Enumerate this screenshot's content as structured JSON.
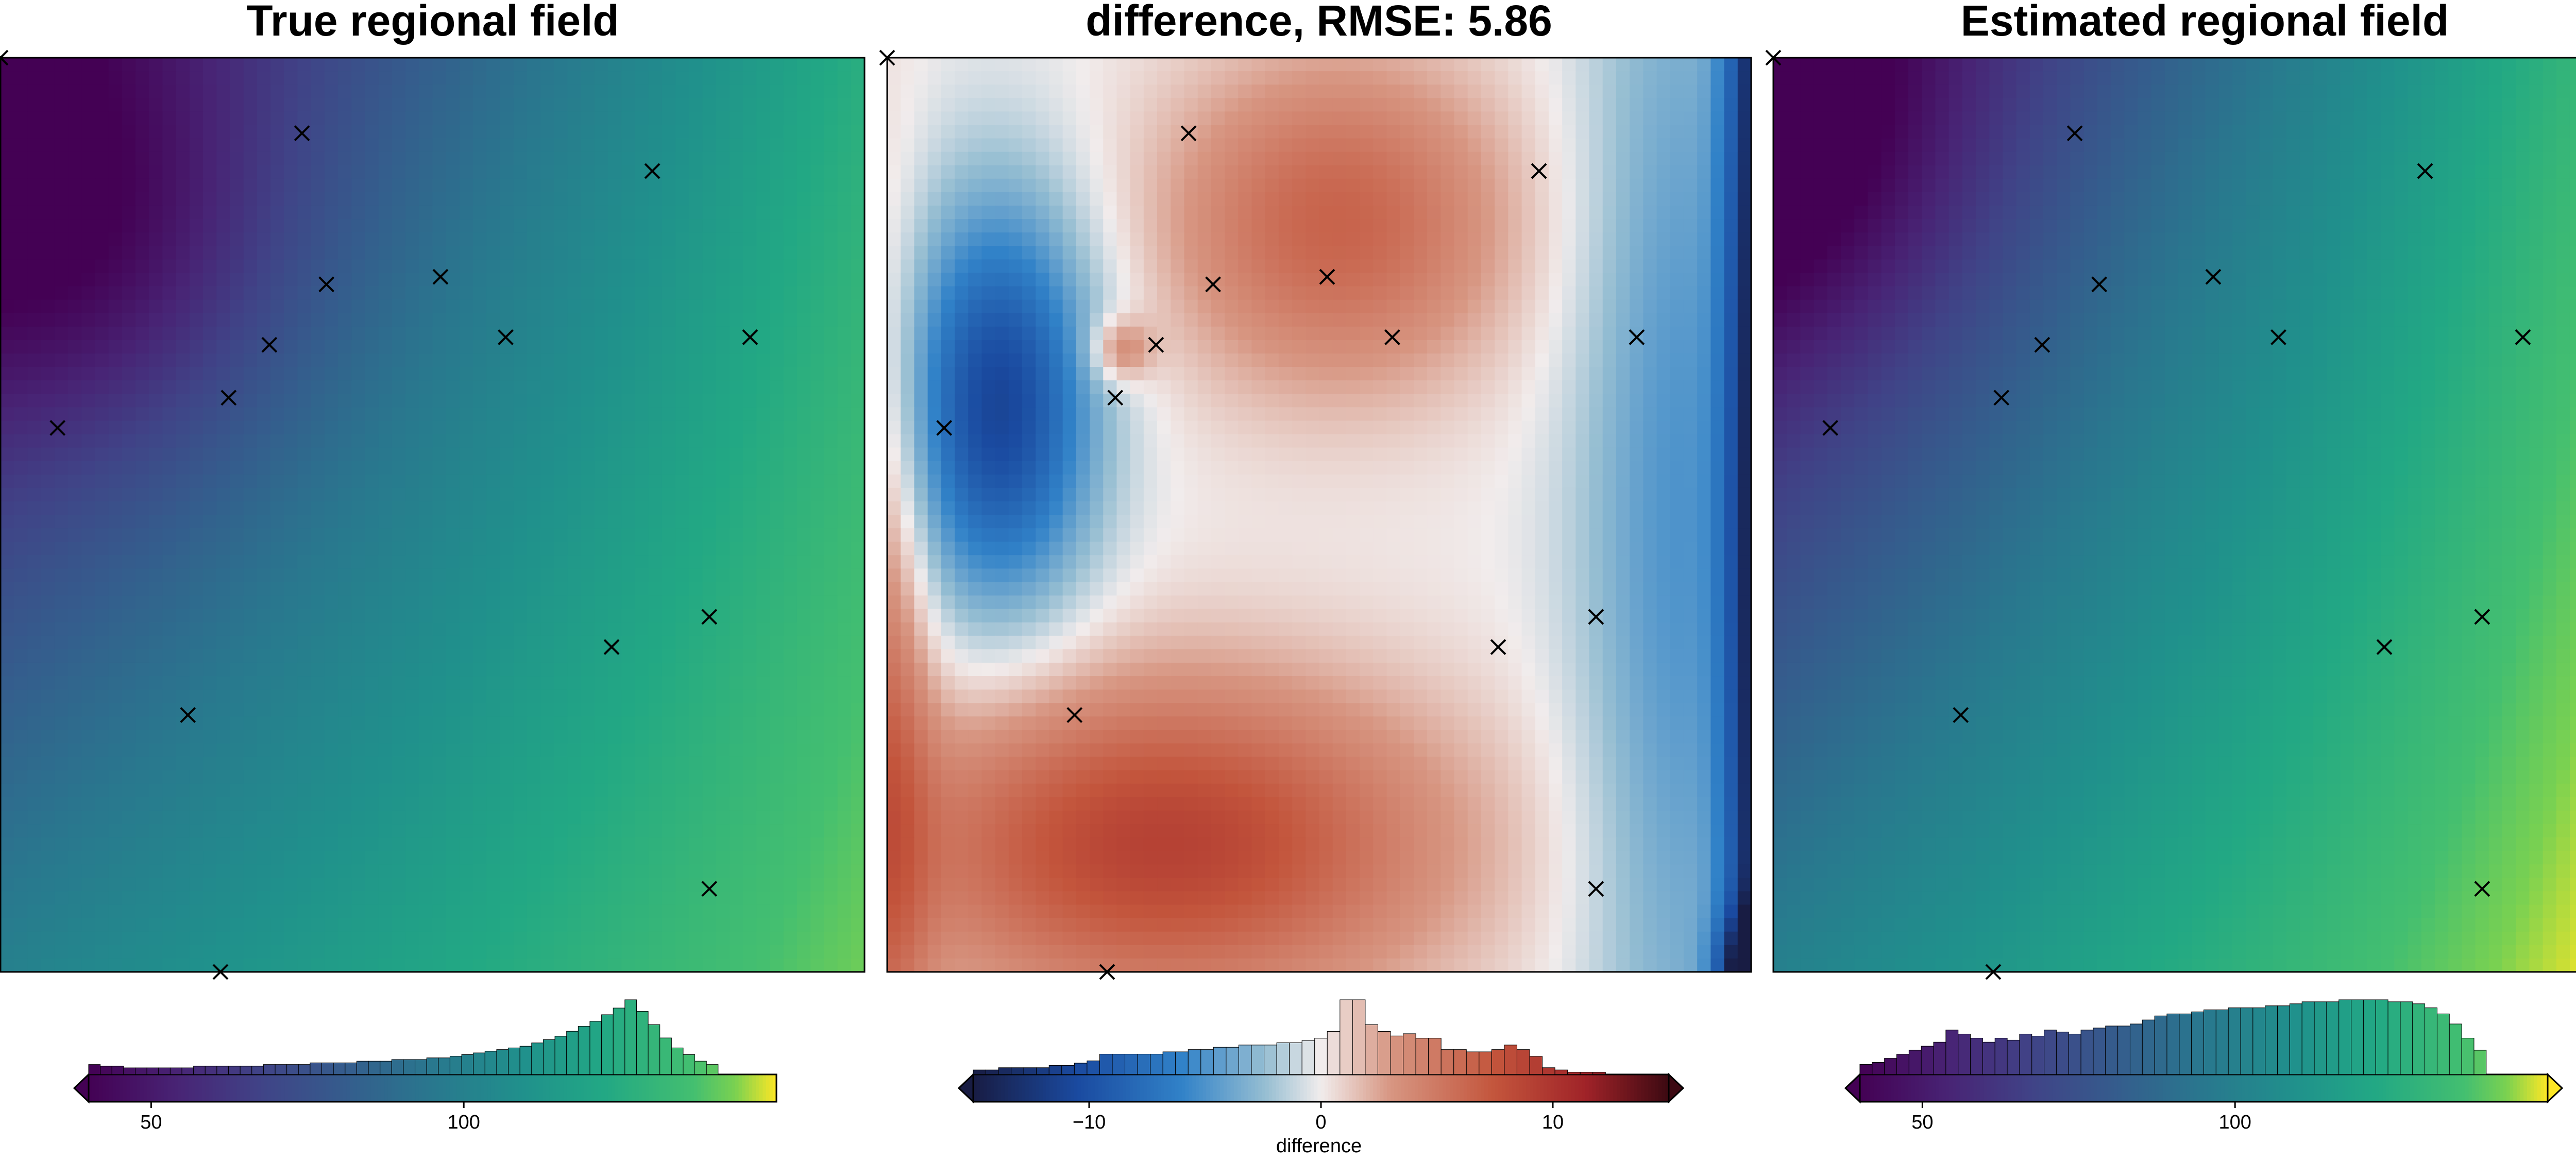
{
  "chart_data": [
    {
      "type": "heatmap",
      "title": "True regional field",
      "colormap": "viridis",
      "field": {
        "z_nw": 40,
        "z_ne": 126,
        "z_sw": 100,
        "z_se": 142,
        "min_at": [
          0.1,
          0.2
        ]
      },
      "colorbar": {
        "ticks": [
          50,
          100
        ],
        "range": [
          40,
          150
        ],
        "extend": "min",
        "label": "",
        "histogram": [
          6,
          5,
          5,
          4,
          4,
          4,
          4,
          4,
          4,
          5,
          5,
          5,
          5,
          5,
          5,
          6,
          6,
          6,
          6,
          7,
          7,
          7,
          7,
          8,
          8,
          8,
          9,
          9,
          9,
          10,
          10,
          11,
          12,
          13,
          14,
          15,
          16,
          17,
          19,
          21,
          23,
          26,
          29,
          32,
          36,
          40,
          45,
          38,
          30,
          22,
          16,
          12,
          8,
          6
        ]
      },
      "points": [
        [
          -0.06,
          -0.01
        ],
        [
          0.31,
          0.09
        ],
        [
          0.74,
          0.14
        ],
        [
          0.34,
          0.29
        ],
        [
          0.48,
          0.28
        ],
        [
          0.27,
          0.37
        ],
        [
          0.56,
          0.36
        ],
        [
          0.86,
          0.36
        ],
        [
          0.22,
          0.44
        ],
        [
          0.01,
          0.48
        ],
        [
          0.81,
          0.73
        ],
        [
          0.69,
          0.77
        ],
        [
          0.17,
          0.86
        ],
        [
          0.81,
          1.09
        ],
        [
          0.21,
          1.2
        ]
      ]
    },
    {
      "type": "heatmap",
      "title": "difference, RMSE: 5.86",
      "colormap": "balance",
      "field": {
        "description_values": "diverging difference field, range -15 to 15"
      },
      "colorbar": {
        "ticks": [
          -10,
          0,
          10
        ],
        "range": [
          -15,
          15
        ],
        "extend": "both",
        "label": "difference",
        "histogram": [
          2,
          2,
          3,
          3,
          3,
          3,
          4,
          4,
          5,
          6,
          9,
          9,
          9,
          9,
          9,
          10,
          10,
          11,
          11,
          12,
          12,
          13,
          13,
          13,
          14,
          14,
          15,
          16,
          19,
          33,
          33,
          22,
          19,
          17,
          18,
          16,
          16,
          11,
          11,
          10,
          10,
          11,
          13,
          11,
          8,
          3,
          2,
          1,
          1,
          1
        ]
      },
      "points": [
        [
          -0.06,
          -0.01
        ],
        [
          0.31,
          0.09
        ],
        [
          0.74,
          0.14
        ],
        [
          0.34,
          0.29
        ],
        [
          0.48,
          0.28
        ],
        [
          0.27,
          0.37
        ],
        [
          0.56,
          0.36
        ],
        [
          0.86,
          0.36
        ],
        [
          0.22,
          0.44
        ],
        [
          0.01,
          0.48
        ],
        [
          0.81,
          0.73
        ],
        [
          0.69,
          0.77
        ],
        [
          0.17,
          0.86
        ],
        [
          0.81,
          1.09
        ],
        [
          0.21,
          1.2
        ]
      ]
    },
    {
      "type": "heatmap",
      "title": "Estimated regional field",
      "colormap": "viridis",
      "field": {
        "z_nw": 38,
        "z_ne": 138,
        "z_sw": 100,
        "z_se": 152,
        "min_at": [
          0.0,
          0.1
        ]
      },
      "colorbar": {
        "ticks": [
          50,
          100
        ],
        "range": [
          40,
          150
        ],
        "extend": "both",
        "label": "",
        "histogram": [
          5,
          6,
          8,
          10,
          12,
          14,
          16,
          22,
          20,
          18,
          16,
          18,
          17,
          20,
          19,
          22,
          21,
          20,
          22,
          23,
          24,
          24,
          25,
          27,
          29,
          30,
          30,
          31,
          32,
          32,
          33,
          33,
          33,
          34,
          34,
          35,
          36,
          36,
          36,
          37,
          37,
          37,
          37,
          36,
          36,
          35,
          33,
          30,
          25,
          18,
          12
        ]
      },
      "points": [
        [
          -0.06,
          -0.01
        ],
        [
          0.31,
          0.09
        ],
        [
          0.74,
          0.14
        ],
        [
          0.34,
          0.29
        ],
        [
          0.48,
          0.28
        ],
        [
          0.27,
          0.37
        ],
        [
          0.56,
          0.36
        ],
        [
          0.86,
          0.36
        ],
        [
          0.22,
          0.44
        ],
        [
          0.01,
          0.48
        ],
        [
          0.81,
          0.73
        ],
        [
          0.69,
          0.77
        ],
        [
          0.17,
          0.86
        ],
        [
          0.81,
          1.09
        ],
        [
          0.21,
          1.2
        ]
      ]
    }
  ],
  "colors": {
    "axis": "#000000",
    "marker": "#000000"
  }
}
